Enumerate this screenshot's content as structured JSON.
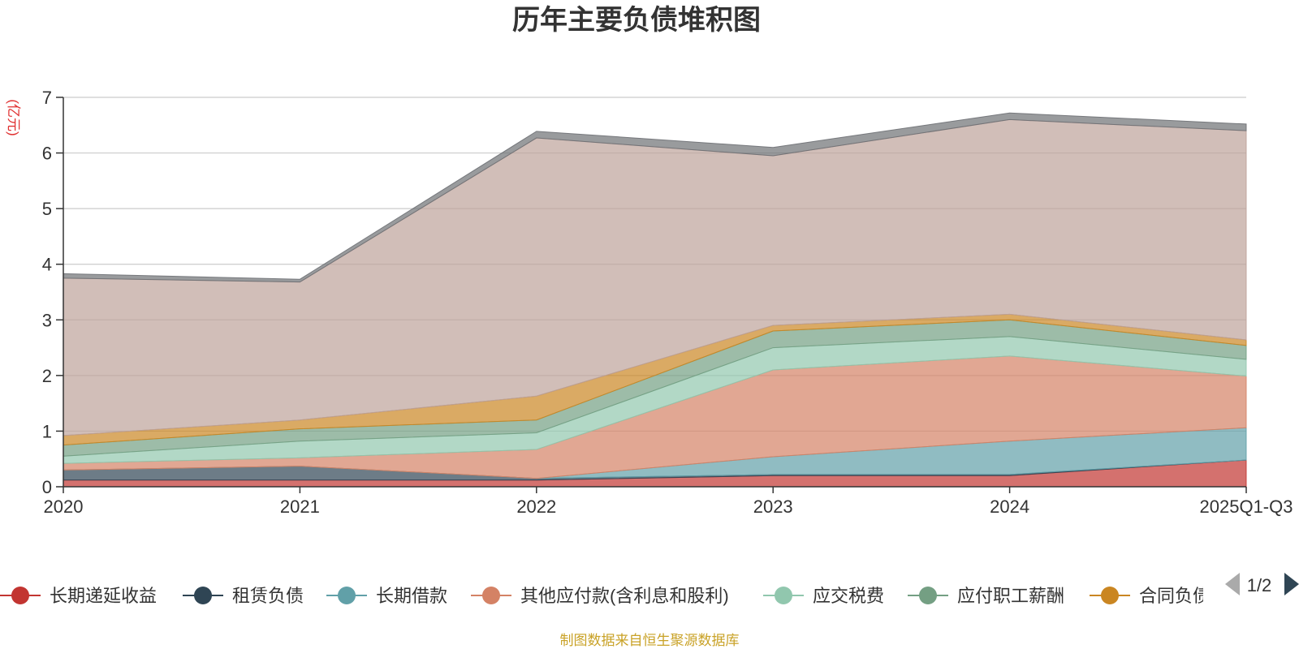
{
  "chart_data": {
    "type": "area",
    "stacked": true,
    "title": "历年主要负债堆积图",
    "unit_label": "(亿元)",
    "x": [
      "2020",
      "2021",
      "2022",
      "2023",
      "2024",
      "2025Q1-Q3"
    ],
    "ylim": [
      0,
      7
    ],
    "yticks": [
      0,
      1,
      2,
      3,
      4,
      5,
      6,
      7
    ],
    "grid": true,
    "series": [
      {
        "name": "长期递延收益",
        "color": "#c23531",
        "values": [
          0.12,
          0.12,
          0.12,
          0.2,
          0.2,
          0.48
        ]
      },
      {
        "name": "租赁负债",
        "color": "#2f4554",
        "values": [
          0.18,
          0.25,
          0.03,
          0.02,
          0.02,
          0.0
        ]
      },
      {
        "name": "长期借款",
        "color": "#61a0a8",
        "values": [
          0.0,
          0.0,
          0.0,
          0.32,
          0.6,
          0.58
        ]
      },
      {
        "name": "其他应付款(含利息和股利)",
        "color": "#d48265",
        "values": [
          0.12,
          0.15,
          0.52,
          1.56,
          1.53,
          0.93
        ]
      },
      {
        "name": "应交税费",
        "color": "#91c7ae",
        "values": [
          0.13,
          0.3,
          0.3,
          0.4,
          0.35,
          0.3
        ]
      },
      {
        "name": "应付职工薪酬",
        "color": "#749f83",
        "values": [
          0.2,
          0.22,
          0.23,
          0.3,
          0.3,
          0.25
        ]
      },
      {
        "name": "合同负债",
        "color": "#ca8622",
        "values": [
          0.17,
          0.16,
          0.43,
          0.1,
          0.1,
          0.1
        ]
      },
      {
        "name": "",
        "color": "#bda29a",
        "values": [
          2.83,
          2.48,
          4.64,
          3.05,
          3.5,
          3.76
        ]
      },
      {
        "name": "",
        "color": "#6e7074",
        "values": [
          0.08,
          0.05,
          0.12,
          0.15,
          0.12,
          0.12
        ]
      }
    ],
    "legend": {
      "position": "bottom",
      "page": "1/2",
      "visible_entries": [
        "长期递延收益",
        "租赁负债",
        "长期借款",
        "其他应付款(含利息和股利)",
        "应交税费",
        "应付职工薪酬",
        "合同负债"
      ]
    },
    "source": "制图数据来自恒生聚源数据库"
  }
}
